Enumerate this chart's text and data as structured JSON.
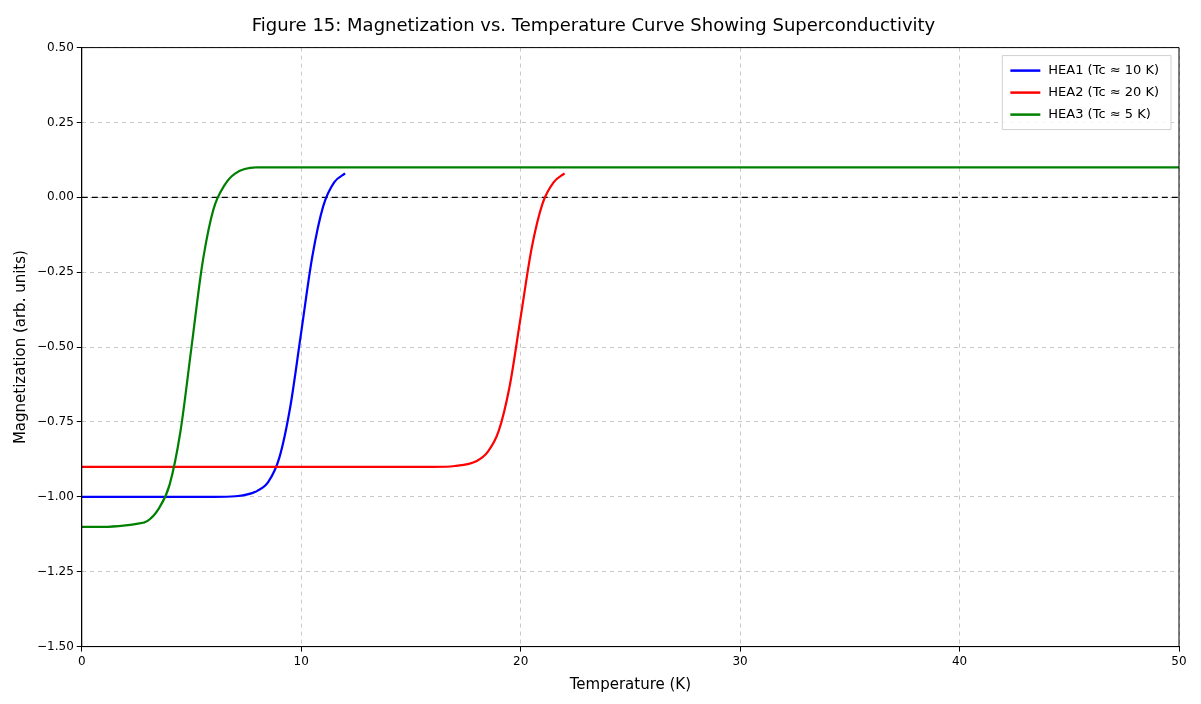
{
  "chart_data": {
    "type": "line",
    "title": "Figure 15: Magnetization vs. Temperature Curve Showing Superconductivity",
    "xlabel": "Temperature (K)",
    "ylabel": "Magnetization (arb. units)",
    "xlim": [
      0,
      50
    ],
    "xticks": [
      0,
      10,
      20,
      30,
      40,
      50
    ],
    "ylim": [
      -1.5,
      0.5
    ],
    "yticks": [
      {
        "value": -1.5,
        "label": "−1.50"
      },
      {
        "value": -1.25,
        "label": "−1.25"
      },
      {
        "value": -1,
        "label": "−1.00"
      },
      {
        "value": -0.75,
        "label": "−0.75"
      },
      {
        "value": -0.5,
        "label": "−0.50"
      },
      {
        "value": -0.25,
        "label": "−0.25"
      },
      {
        "value": 0,
        "label": "0.00"
      },
      {
        "value": 0.25,
        "label": "0.25"
      },
      {
        "value": 0.5,
        "label": "0.50"
      }
    ],
    "grid": true,
    "legend": "top right",
    "line_style": "solid",
    "marker": "none",
    "ref_lines": [
      {
        "axis": "y",
        "value": 0,
        "color": "#000000",
        "line_style": "dashed"
      }
    ],
    "series": [
      {
        "name": "HEA1 (Tc ≈ 10 K)",
        "color": "#0000ff",
        "x": [
          0,
          6,
          7,
          8,
          8.5,
          9,
          9.5,
          10,
          10.5,
          11,
          11.5,
          12
        ],
        "values": [
          -1,
          -1,
          -0.998,
          -0.98,
          -0.95,
          -0.87,
          -0.7,
          -0.45,
          -0.2,
          -0.03,
          0.05,
          0.08
        ]
      },
      {
        "name": "HEA2 (Tc ≈ 20 K)",
        "color": "#ff0000",
        "x": [
          0,
          10,
          16,
          17,
          18,
          18.5,
          19,
          19.5,
          20,
          20.5,
          21,
          21.5,
          22
        ],
        "values": [
          -0.9,
          -0.9,
          -0.9,
          -0.897,
          -0.88,
          -0.85,
          -0.78,
          -0.63,
          -0.4,
          -0.17,
          -0.02,
          0.05,
          0.08
        ]
      },
      {
        "name": "HEA3 (Tc ≈ 5 K)",
        "color": "#008000",
        "x": [
          0,
          1,
          2,
          2.5,
          3,
          3.5,
          4,
          4.5,
          5,
          5.5,
          6,
          6.5,
          7,
          8,
          9,
          20,
          30,
          40,
          50
        ],
        "values": [
          -1.1,
          -1.1,
          -1.095,
          -1.09,
          -1.08,
          -1.04,
          -0.96,
          -0.78,
          -0.5,
          -0.22,
          -0.04,
          0.04,
          0.08,
          0.1,
          0.1,
          0.1,
          0.1,
          0.1,
          0.1
        ]
      }
    ]
  }
}
